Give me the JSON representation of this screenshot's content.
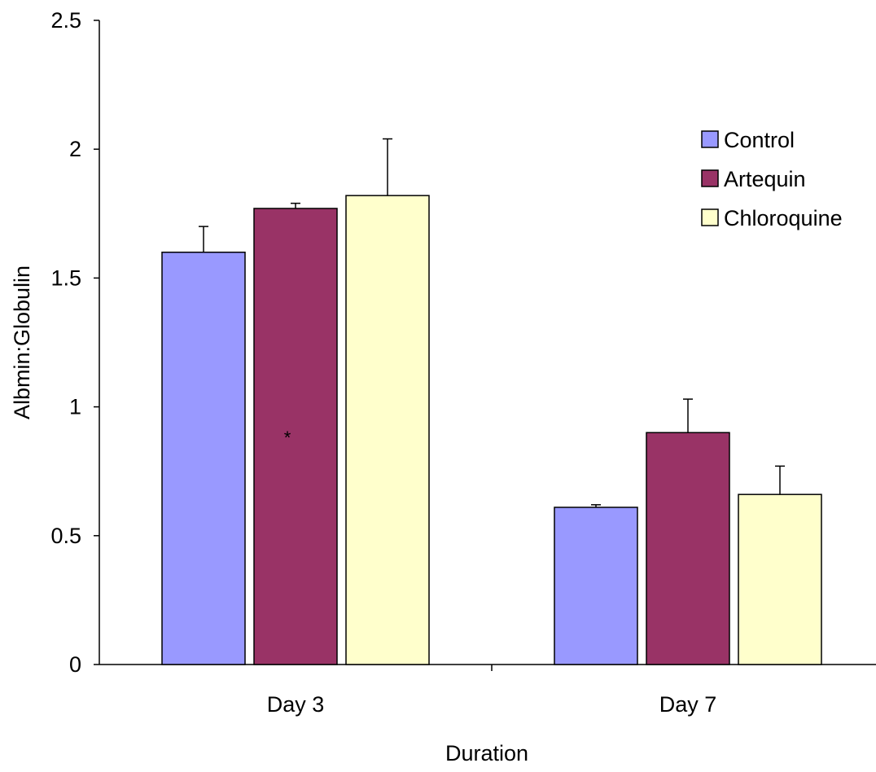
{
  "chart_data": {
    "type": "bar",
    "xlabel": "Duration",
    "ylabel": "Albmin:Globulin",
    "ylim": [
      0,
      2.5
    ],
    "yticks": [
      "0",
      "0.5",
      "1",
      "1.5",
      "2",
      "2.5"
    ],
    "categories": [
      "Day 3",
      "Day 7"
    ],
    "series": [
      {
        "name": "Control",
        "values": [
          1.6,
          0.61
        ],
        "errors": [
          0.1,
          0.01
        ],
        "color": "#9999ff"
      },
      {
        "name": "Artequin",
        "values": [
          1.77,
          0.9
        ],
        "errors": [
          0.02,
          0.13
        ],
        "color": "#993366"
      },
      {
        "name": "Chloroquine",
        "values": [
          1.82,
          0.66
        ],
        "errors": [
          0.22,
          0.11
        ],
        "color": "#ffffcc"
      }
    ],
    "legend_position": "top-right",
    "grid": false,
    "annotations": [
      {
        "text": "*",
        "category": "Day 3",
        "series": "Artequin",
        "y": 0.9
      }
    ]
  }
}
